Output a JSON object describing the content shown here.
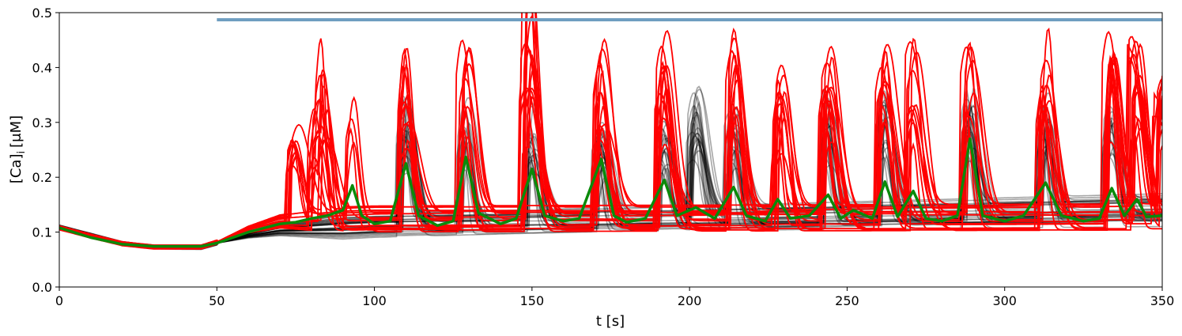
{
  "chart_data": {
    "type": "line",
    "xlabel": "t [s]",
    "ylabel": "[Ca]",
    "ylabel_subscript": "i",
    "ylabel_unit": "[μM]",
    "xlim": [
      0,
      350
    ],
    "ylim": [
      0,
      0.5
    ],
    "x_ticks": [
      0,
      50,
      100,
      150,
      200,
      250,
      300,
      350
    ],
    "y_ticks": [
      0.0,
      0.1,
      0.2,
      0.3,
      0.4,
      0.5
    ],
    "x_tick_labels": [
      "0",
      "50",
      "100",
      "150",
      "200",
      "250",
      "300",
      "350"
    ],
    "y_tick_labels": [
      "0.0",
      "0.1",
      "0.2",
      "0.3",
      "0.4",
      "0.5"
    ],
    "grid": false,
    "legend": "none",
    "stimulus_bar": {
      "x": [
        50,
        350
      ],
      "y": 0.487,
      "color": "#6f9ec0"
    },
    "colors": {
      "black_traces": "#000000",
      "red_traces": "#ff0000",
      "mean_trace": "#0a8a0a"
    },
    "series": [
      {
        "style": "black_traces",
        "count": 40,
        "baseline": {
          "x": [
            0,
            10,
            20,
            30,
            45,
            50,
            60,
            70,
            100,
            150,
            200,
            250,
            300,
            350
          ],
          "y": [
            0.11,
            0.095,
            0.08,
            0.073,
            0.072,
            0.08,
            0.095,
            0.105,
            0.113,
            0.118,
            0.122,
            0.127,
            0.132,
            0.137
          ]
        },
        "peaks": [
          [
            110,
            0.35
          ],
          [
            129,
            0.35
          ],
          [
            150,
            0.33
          ],
          [
            172,
            0.3
          ],
          [
            192,
            0.3
          ],
          [
            202,
            0.36
          ],
          [
            214,
            0.32
          ],
          [
            244,
            0.35
          ],
          [
            262,
            0.36
          ],
          [
            289,
            0.35
          ],
          [
            313,
            0.33
          ],
          [
            334,
            0.32
          ]
        ]
      },
      {
        "style": "red_traces",
        "count": 18,
        "baseline": {
          "x": [
            0,
            10,
            20,
            30,
            45,
            50,
            60,
            70,
            100,
            150,
            200,
            250,
            300,
            350
          ],
          "y": [
            0.108,
            0.093,
            0.079,
            0.073,
            0.073,
            0.082,
            0.105,
            0.12,
            0.125,
            0.125,
            0.125,
            0.125,
            0.125,
            0.125
          ]
        },
        "peaks": [
          [
            75,
            0.29
          ],
          [
            82,
            0.36
          ],
          [
            84,
            0.35
          ],
          [
            93,
            0.4
          ],
          [
            110,
            0.43
          ],
          [
            129,
            0.45
          ],
          [
            149,
            0.45
          ],
          [
            150,
            0.45
          ],
          [
            172,
            0.45
          ],
          [
            192,
            0.45
          ],
          [
            214,
            0.46
          ],
          [
            229,
            0.4
          ],
          [
            244,
            0.45
          ],
          [
            262,
            0.45
          ],
          [
            271,
            0.45
          ],
          [
            289,
            0.47
          ],
          [
            313,
            0.45
          ],
          [
            334,
            0.46
          ],
          [
            342,
            0.45
          ],
          [
            350,
            0.45
          ]
        ]
      },
      {
        "style": "mean_trace",
        "x": [
          0,
          10,
          20,
          30,
          45,
          50,
          60,
          70,
          75,
          80,
          85,
          90,
          93,
          96,
          100,
          105,
          110,
          114,
          120,
          125,
          129,
          133,
          140,
          145,
          150,
          154,
          160,
          165,
          172,
          176,
          180,
          186,
          192,
          196,
          202,
          208,
          214,
          218,
          224,
          228,
          232,
          238,
          244,
          248,
          252,
          258,
          262,
          266,
          271,
          275,
          280,
          285,
          289,
          293,
          300,
          306,
          313,
          318,
          325,
          330,
          334,
          338,
          342,
          345,
          350
        ],
        "y": [
          0.108,
          0.09,
          0.078,
          0.074,
          0.074,
          0.08,
          0.1,
          0.115,
          0.118,
          0.125,
          0.13,
          0.14,
          0.185,
          0.13,
          0.115,
          0.12,
          0.225,
          0.13,
          0.112,
          0.12,
          0.237,
          0.135,
          0.115,
          0.125,
          0.215,
          0.13,
          0.12,
          0.125,
          0.233,
          0.13,
          0.118,
          0.125,
          0.195,
          0.13,
          0.145,
          0.125,
          0.182,
          0.13,
          0.12,
          0.16,
          0.125,
          0.13,
          0.168,
          0.125,
          0.14,
          0.125,
          0.192,
          0.128,
          0.175,
          0.125,
          0.12,
          0.13,
          0.27,
          0.13,
          0.12,
          0.13,
          0.19,
          0.13,
          0.12,
          0.125,
          0.18,
          0.13,
          0.16,
          0.128,
          0.13
        ]
      }
    ]
  }
}
